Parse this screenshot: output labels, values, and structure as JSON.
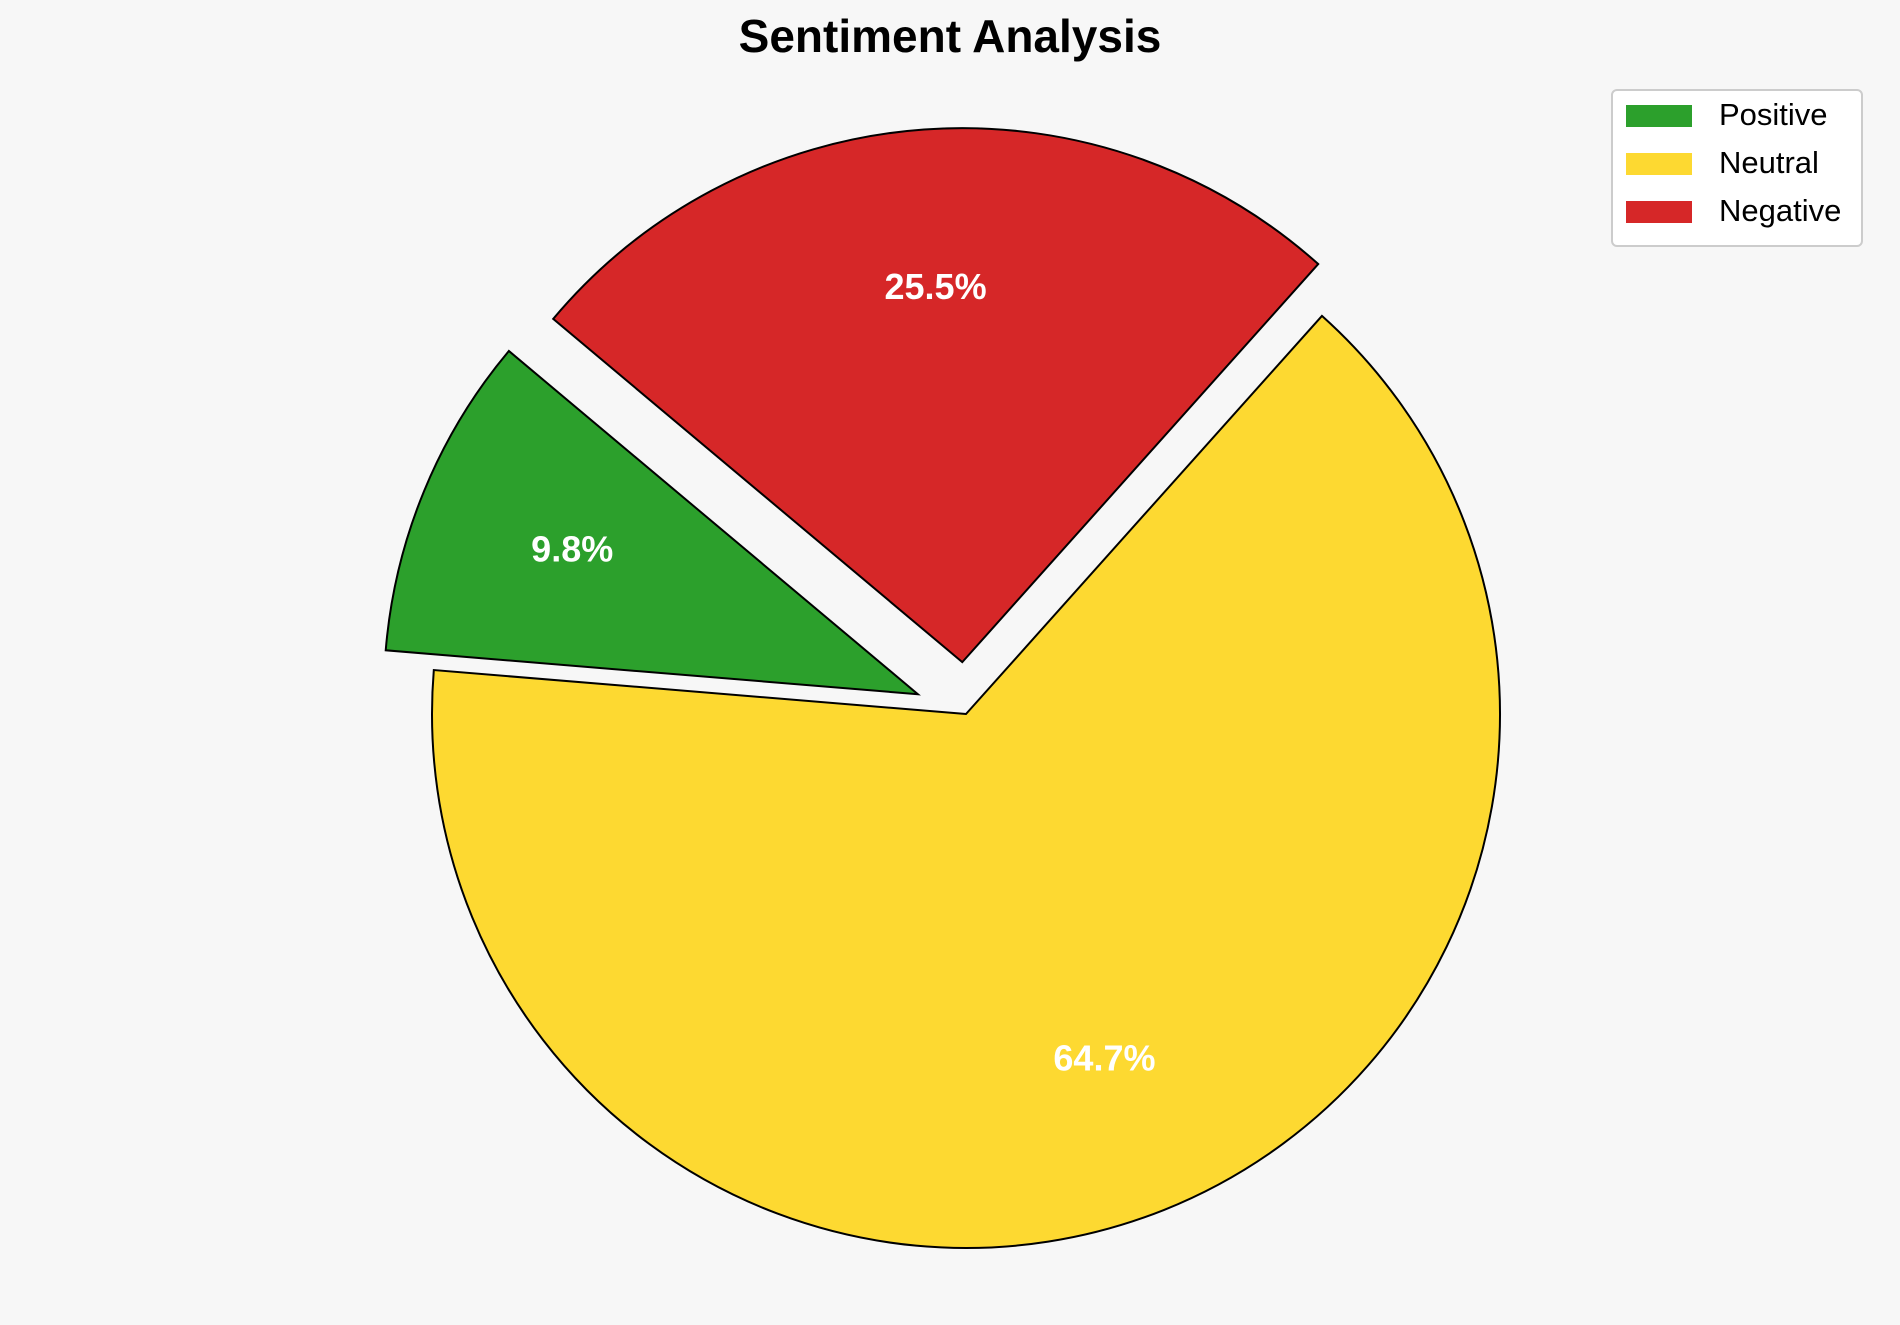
{
  "chart_data": {
    "type": "pie",
    "title": "Sentiment Analysis",
    "categories": [
      "Positive",
      "Neutral",
      "Negative"
    ],
    "values": [
      9.8,
      64.7,
      25.5
    ],
    "value_labels": [
      "9.8%",
      "64.7%",
      "25.5%"
    ],
    "colors": [
      "#2ca02c",
      "#fdd931",
      "#d62728"
    ],
    "legend": "upper right"
  }
}
